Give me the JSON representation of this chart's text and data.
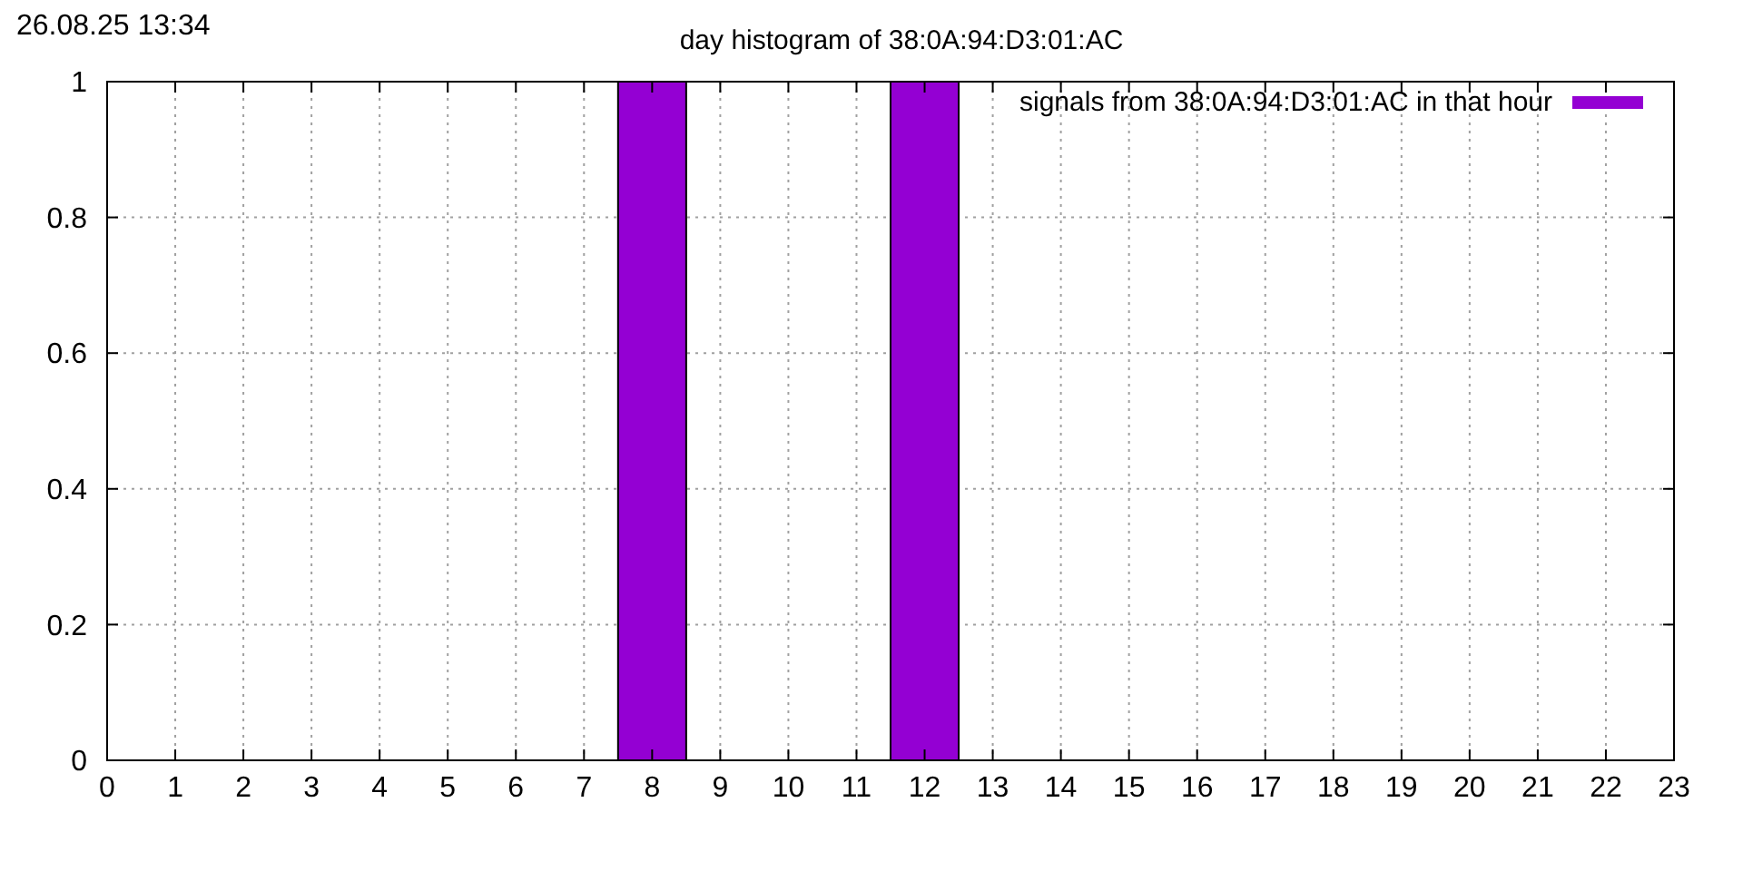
{
  "chart_data": {
    "type": "bar",
    "title": "day histogram of 38:0A:94:D3:01:AC",
    "annotations": [
      "26.08.25 13:34"
    ],
    "x": [
      0,
      1,
      2,
      3,
      4,
      5,
      6,
      7,
      8,
      9,
      10,
      11,
      12,
      13,
      14,
      15,
      16,
      17,
      18,
      19,
      20,
      21,
      22,
      23
    ],
    "series": [
      {
        "name": "signals from 38:0A:94:D3:01:AC in that hour",
        "color": "#9400d3",
        "values": [
          0,
          0,
          0,
          0,
          0,
          0,
          0,
          0,
          1,
          0,
          0,
          0,
          1,
          0,
          0,
          0,
          0,
          0,
          0,
          0,
          0,
          0,
          0,
          0
        ]
      }
    ],
    "xlim": [
      0,
      23
    ],
    "xticks": [
      0,
      1,
      2,
      3,
      4,
      5,
      6,
      7,
      8,
      9,
      10,
      11,
      12,
      13,
      14,
      15,
      16,
      17,
      18,
      19,
      20,
      21,
      22,
      23
    ],
    "ylim": [
      0,
      1
    ],
    "yticks": [
      0,
      {
        "value": 0.2,
        "label": "0.2"
      },
      {
        "value": 0.4,
        "label": "0.4"
      },
      {
        "value": 0.6,
        "label": "0.6"
      },
      {
        "value": 0.8,
        "label": "0.8"
      },
      1
    ],
    "grid": true,
    "legend": "top right"
  }
}
